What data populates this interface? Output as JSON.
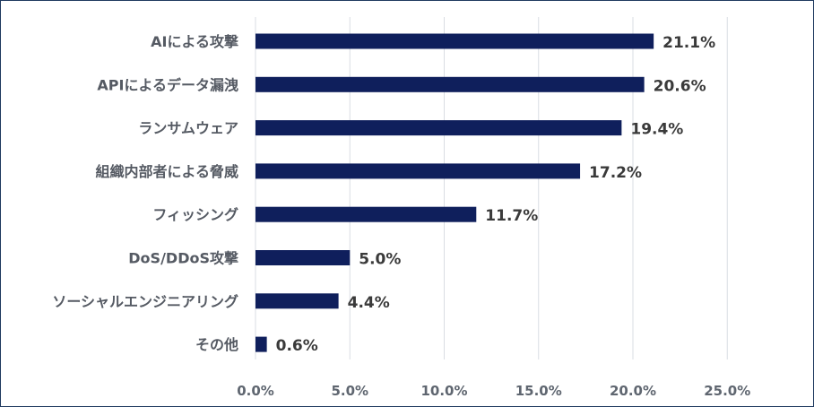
{
  "chart_data": {
    "type": "bar",
    "orientation": "horizontal",
    "categories": [
      "AIによる攻撃",
      "APIによるデータ漏洩",
      "ランサムウェア",
      "組織内部者による脅威",
      "フィッシング",
      "DoS/DDoS攻撃",
      "ソーシャルエンジニアリング",
      "その他"
    ],
    "values": [
      21.1,
      20.6,
      19.4,
      17.2,
      11.7,
      5.0,
      4.4,
      0.6
    ],
    "data_labels": [
      "21.1%",
      "20.6%",
      "19.4%",
      "17.2%",
      "11.7%",
      "5.0%",
      "4.4%",
      "0.6%"
    ],
    "xlim": [
      0,
      25
    ],
    "x_ticks": [
      0,
      5,
      10,
      15,
      20,
      25
    ],
    "x_tick_labels": [
      "0.0%",
      "5.0%",
      "10.0%",
      "15.0%",
      "20.0%",
      "25.0%"
    ],
    "grid": true,
    "bar_color": "#0f1f5c"
  }
}
